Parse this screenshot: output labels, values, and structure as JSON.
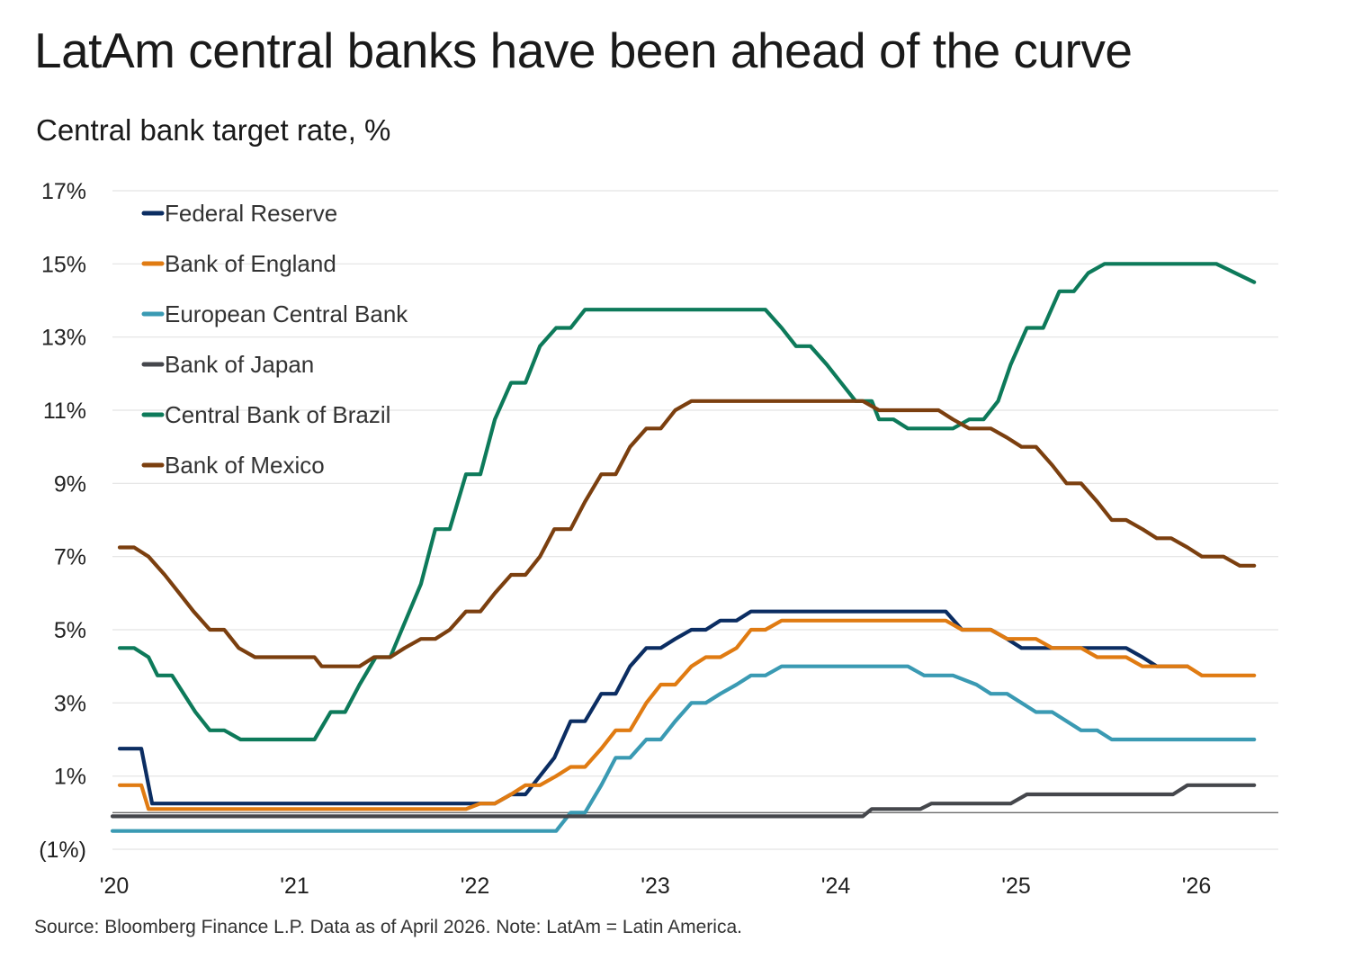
{
  "title": "LatAm central banks have been ahead of the curve",
  "subtitle": "Central bank target rate, %",
  "source": "Source: Bloomberg Finance L.P. Data as of April 2026. Note: LatAm = Latin America.",
  "chart_data": {
    "type": "line",
    "title": "LatAm central banks have been ahead of the curve",
    "ylabel": "Central bank target rate, %",
    "xlabel": "",
    "ylim": [
      -1,
      17
    ],
    "xlim": [
      2020.0,
      2026.5
    ],
    "y_ticks": [
      {
        "value": 17,
        "label": "17%"
      },
      {
        "value": 15,
        "label": "15%"
      },
      {
        "value": 13,
        "label": "13%"
      },
      {
        "value": 11,
        "label": "11%"
      },
      {
        "value": 9,
        "label": "9%"
      },
      {
        "value": 7,
        "label": "7%"
      },
      {
        "value": 5,
        "label": "5%"
      },
      {
        "value": 3,
        "label": "3%"
      },
      {
        "value": 1,
        "label": "1%"
      },
      {
        "value": -1,
        "label": "(1%)"
      }
    ],
    "x_ticks": [
      {
        "value": 2020,
        "label": "'20"
      },
      {
        "value": 2021,
        "label": "'21"
      },
      {
        "value": 2022,
        "label": "'22"
      },
      {
        "value": 2023,
        "label": "'23"
      },
      {
        "value": 2024,
        "label": "'24"
      },
      {
        "value": 2025,
        "label": "'25"
      },
      {
        "value": 2026,
        "label": "'26"
      }
    ],
    "grid": true,
    "zero_line": true,
    "legend_position": "top-left",
    "series": [
      {
        "name": "Federal Reserve",
        "color": "#0b2d62",
        "points": [
          [
            2020.04,
            1.75
          ],
          [
            2020.16,
            1.75
          ],
          [
            2020.22,
            0.25
          ],
          [
            2022.12,
            0.25
          ],
          [
            2022.21,
            0.5
          ],
          [
            2022.29,
            0.5
          ],
          [
            2022.45,
            1.5
          ],
          [
            2022.54,
            2.5
          ],
          [
            2022.62,
            2.5
          ],
          [
            2022.71,
            3.25
          ],
          [
            2022.79,
            3.25
          ],
          [
            2022.87,
            4.0
          ],
          [
            2022.96,
            4.5
          ],
          [
            2023.04,
            4.5
          ],
          [
            2023.12,
            4.75
          ],
          [
            2023.21,
            5.0
          ],
          [
            2023.29,
            5.0
          ],
          [
            2023.37,
            5.25
          ],
          [
            2023.46,
            5.25
          ],
          [
            2023.54,
            5.5
          ],
          [
            2024.62,
            5.5
          ],
          [
            2024.71,
            5.0
          ],
          [
            2024.87,
            5.0
          ],
          [
            2024.96,
            4.75
          ],
          [
            2025.04,
            4.5
          ],
          [
            2025.62,
            4.5
          ],
          [
            2025.71,
            4.25
          ],
          [
            2025.79,
            4.0
          ],
          [
            2025.96,
            4.0
          ]
        ]
      },
      {
        "name": "Bank of England",
        "color": "#e07b12",
        "points": [
          [
            2020.04,
            0.75
          ],
          [
            2020.16,
            0.75
          ],
          [
            2020.2,
            0.1
          ],
          [
            2021.96,
            0.1
          ],
          [
            2022.04,
            0.25
          ],
          [
            2022.12,
            0.25
          ],
          [
            2022.21,
            0.5
          ],
          [
            2022.29,
            0.75
          ],
          [
            2022.37,
            0.75
          ],
          [
            2022.46,
            1.0
          ],
          [
            2022.54,
            1.25
          ],
          [
            2022.62,
            1.25
          ],
          [
            2022.71,
            1.75
          ],
          [
            2022.79,
            2.25
          ],
          [
            2022.87,
            2.25
          ],
          [
            2022.96,
            3.0
          ],
          [
            2023.04,
            3.5
          ],
          [
            2023.12,
            3.5
          ],
          [
            2023.21,
            4.0
          ],
          [
            2023.29,
            4.25
          ],
          [
            2023.37,
            4.25
          ],
          [
            2023.46,
            4.5
          ],
          [
            2023.54,
            5.0
          ],
          [
            2023.62,
            5.0
          ],
          [
            2023.71,
            5.25
          ],
          [
            2024.62,
            5.25
          ],
          [
            2024.71,
            5.0
          ],
          [
            2024.87,
            5.0
          ],
          [
            2024.96,
            4.75
          ],
          [
            2025.12,
            4.75
          ],
          [
            2025.21,
            4.5
          ],
          [
            2025.37,
            4.5
          ],
          [
            2025.46,
            4.25
          ],
          [
            2025.62,
            4.25
          ],
          [
            2025.71,
            4.0
          ],
          [
            2025.96,
            4.0
          ],
          [
            2026.04,
            3.75
          ],
          [
            2026.33,
            3.75
          ]
        ]
      },
      {
        "name": "European Central Bank",
        "color": "#3a9ab3",
        "points": [
          [
            2020.0,
            -0.5
          ],
          [
            2022.46,
            -0.5
          ],
          [
            2022.54,
            0.0
          ],
          [
            2022.62,
            0.0
          ],
          [
            2022.71,
            0.75
          ],
          [
            2022.79,
            1.5
          ],
          [
            2022.87,
            1.5
          ],
          [
            2022.96,
            2.0
          ],
          [
            2023.04,
            2.0
          ],
          [
            2023.12,
            2.5
          ],
          [
            2023.21,
            3.0
          ],
          [
            2023.29,
            3.0
          ],
          [
            2023.37,
            3.25
          ],
          [
            2023.46,
            3.5
          ],
          [
            2023.54,
            3.75
          ],
          [
            2023.62,
            3.75
          ],
          [
            2023.71,
            4.0
          ],
          [
            2024.41,
            4.0
          ],
          [
            2024.5,
            3.75
          ],
          [
            2024.66,
            3.75
          ],
          [
            2024.79,
            3.5
          ],
          [
            2024.87,
            3.25
          ],
          [
            2024.96,
            3.25
          ],
          [
            2025.04,
            3.0
          ],
          [
            2025.12,
            2.75
          ],
          [
            2025.21,
            2.75
          ],
          [
            2025.37,
            2.25
          ],
          [
            2025.46,
            2.25
          ],
          [
            2025.54,
            2.0
          ],
          [
            2026.33,
            2.0
          ]
        ]
      },
      {
        "name": "Bank of Japan",
        "color": "#45474c",
        "points": [
          [
            2020.0,
            -0.1
          ],
          [
            2024.16,
            -0.1
          ],
          [
            2024.21,
            0.1
          ],
          [
            2024.48,
            0.1
          ],
          [
            2024.54,
            0.25
          ],
          [
            2024.98,
            0.25
          ],
          [
            2025.07,
            0.5
          ],
          [
            2025.88,
            0.5
          ],
          [
            2025.96,
            0.75
          ],
          [
            2026.33,
            0.75
          ]
        ]
      },
      {
        "name": "Central Bank of Brazil",
        "color": "#0d7a5a",
        "points": [
          [
            2020.04,
            4.5
          ],
          [
            2020.12,
            4.5
          ],
          [
            2020.2,
            4.25
          ],
          [
            2020.25,
            3.75
          ],
          [
            2020.33,
            3.75
          ],
          [
            2020.46,
            2.75
          ],
          [
            2020.54,
            2.25
          ],
          [
            2020.62,
            2.25
          ],
          [
            2020.71,
            2.0
          ],
          [
            2021.12,
            2.0
          ],
          [
            2021.21,
            2.75
          ],
          [
            2021.29,
            2.75
          ],
          [
            2021.37,
            3.5
          ],
          [
            2021.46,
            4.25
          ],
          [
            2021.54,
            4.25
          ],
          [
            2021.71,
            6.25
          ],
          [
            2021.79,
            7.75
          ],
          [
            2021.87,
            7.75
          ],
          [
            2021.96,
            9.25
          ],
          [
            2022.04,
            9.25
          ],
          [
            2022.12,
            10.75
          ],
          [
            2022.21,
            11.75
          ],
          [
            2022.29,
            11.75
          ],
          [
            2022.37,
            12.75
          ],
          [
            2022.46,
            13.25
          ],
          [
            2022.54,
            13.25
          ],
          [
            2022.62,
            13.75
          ],
          [
            2023.62,
            13.75
          ],
          [
            2023.71,
            13.25
          ],
          [
            2023.79,
            12.75
          ],
          [
            2023.87,
            12.75
          ],
          [
            2023.96,
            12.25
          ],
          [
            2024.04,
            11.75
          ],
          [
            2024.12,
            11.25
          ],
          [
            2024.21,
            11.25
          ],
          [
            2024.25,
            10.75
          ],
          [
            2024.33,
            10.75
          ],
          [
            2024.41,
            10.5
          ],
          [
            2024.66,
            10.5
          ],
          [
            2024.75,
            10.75
          ],
          [
            2024.83,
            10.75
          ],
          [
            2024.91,
            11.25
          ],
          [
            2024.98,
            12.25
          ],
          [
            2025.07,
            13.25
          ],
          [
            2025.16,
            13.25
          ],
          [
            2025.25,
            14.25
          ],
          [
            2025.33,
            14.25
          ],
          [
            2025.41,
            14.75
          ],
          [
            2025.5,
            15.0
          ],
          [
            2026.12,
            15.0
          ],
          [
            2026.33,
            14.5
          ]
        ]
      },
      {
        "name": "Bank of Mexico",
        "color": "#7b3f0f",
        "points": [
          [
            2020.04,
            7.25
          ],
          [
            2020.12,
            7.25
          ],
          [
            2020.2,
            7.0
          ],
          [
            2020.29,
            6.5
          ],
          [
            2020.37,
            6.0
          ],
          [
            2020.45,
            5.5
          ],
          [
            2020.54,
            5.0
          ],
          [
            2020.62,
            5.0
          ],
          [
            2020.7,
            4.5
          ],
          [
            2020.79,
            4.25
          ],
          [
            2021.12,
            4.25
          ],
          [
            2021.16,
            4.0
          ],
          [
            2021.37,
            4.0
          ],
          [
            2021.45,
            4.25
          ],
          [
            2021.54,
            4.25
          ],
          [
            2021.62,
            4.5
          ],
          [
            2021.71,
            4.75
          ],
          [
            2021.79,
            4.75
          ],
          [
            2021.87,
            5.0
          ],
          [
            2021.96,
            5.5
          ],
          [
            2022.04,
            5.5
          ],
          [
            2022.12,
            6.0
          ],
          [
            2022.21,
            6.5
          ],
          [
            2022.29,
            6.5
          ],
          [
            2022.37,
            7.0
          ],
          [
            2022.45,
            7.75
          ],
          [
            2022.54,
            7.75
          ],
          [
            2022.62,
            8.5
          ],
          [
            2022.71,
            9.25
          ],
          [
            2022.79,
            9.25
          ],
          [
            2022.87,
            10.0
          ],
          [
            2022.96,
            10.5
          ],
          [
            2023.04,
            10.5
          ],
          [
            2023.12,
            11.0
          ],
          [
            2023.21,
            11.25
          ],
          [
            2024.16,
            11.25
          ],
          [
            2024.25,
            11.0
          ],
          [
            2024.58,
            11.0
          ],
          [
            2024.66,
            10.75
          ],
          [
            2024.75,
            10.5
          ],
          [
            2024.87,
            10.5
          ],
          [
            2024.96,
            10.25
          ],
          [
            2025.04,
            10.0
          ],
          [
            2025.12,
            10.0
          ],
          [
            2025.21,
            9.5
          ],
          [
            2025.29,
            9.0
          ],
          [
            2025.37,
            9.0
          ],
          [
            2025.46,
            8.5
          ],
          [
            2025.54,
            8.0
          ],
          [
            2025.62,
            8.0
          ],
          [
            2025.71,
            7.75
          ],
          [
            2025.79,
            7.5
          ],
          [
            2025.87,
            7.5
          ],
          [
            2025.96,
            7.25
          ],
          [
            2026.04,
            7.0
          ],
          [
            2026.16,
            7.0
          ],
          [
            2026.25,
            6.75
          ],
          [
            2026.33,
            6.75
          ]
        ]
      }
    ]
  }
}
